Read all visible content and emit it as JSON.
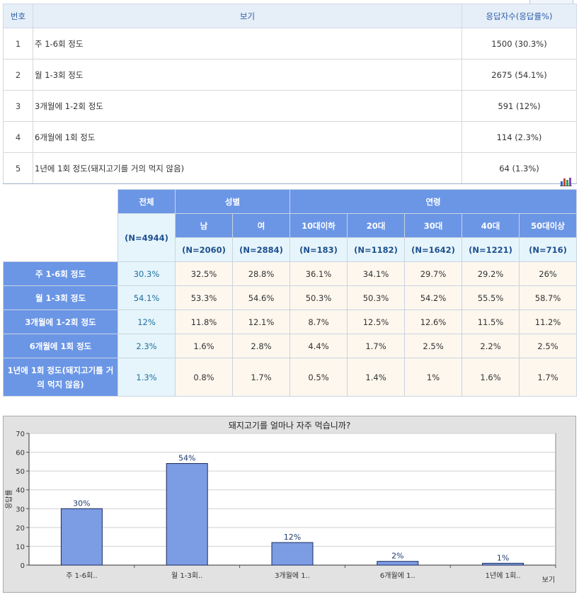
{
  "table1": {
    "headers": [
      "번호",
      "보기",
      "응답자수(응답률%)"
    ],
    "rows": [
      {
        "no": "1",
        "text": "주 1-6회 정도",
        "count": "1500 (30.3%)"
      },
      {
        "no": "2",
        "text": "월 1-3회 정도",
        "count": "2675 (54.1%)"
      },
      {
        "no": "3",
        "text": "3개월에 1-2회 정도",
        "count": "591 (12%)"
      },
      {
        "no": "4",
        "text": "6개월에 1회 정도",
        "count": "114 (2.3%)"
      },
      {
        "no": "5",
        "text": "1년에 1회 정도(돼지고기를 거의 먹지 않음)",
        "count": "64 (1.3%)"
      }
    ]
  },
  "table2": {
    "total_label": "전체",
    "total_n": "(N=4944)",
    "gender_label": "성별",
    "age_label": "연령",
    "groups": [
      "남",
      "여",
      "10대이하",
      "20대",
      "30대",
      "40대",
      "50대이상"
    ],
    "group_n": [
      "(N=2060)",
      "(N=2884)",
      "(N=183)",
      "(N=1182)",
      "(N=1642)",
      "(N=1221)",
      "(N=716)"
    ],
    "rows": [
      {
        "label": "주 1-6회 정도",
        "total": "30.3%",
        "values": [
          "32.5%",
          "28.8%",
          "36.1%",
          "34.1%",
          "29.7%",
          "29.2%",
          "26%"
        ]
      },
      {
        "label": "월 1-3회 정도",
        "total": "54.1%",
        "values": [
          "53.3%",
          "54.6%",
          "50.3%",
          "50.3%",
          "54.2%",
          "55.5%",
          "58.7%"
        ]
      },
      {
        "label": "3개월에 1-2회 정도",
        "total": "12%",
        "values": [
          "11.8%",
          "12.1%",
          "8.7%",
          "12.5%",
          "12.6%",
          "11.5%",
          "11.2%"
        ]
      },
      {
        "label": "6개월에 1회 정도",
        "total": "2.3%",
        "values": [
          "1.6%",
          "2.8%",
          "4.4%",
          "1.7%",
          "2.5%",
          "2.2%",
          "2.5%"
        ]
      },
      {
        "label": "1년에 1회 정도(돼지고기를 거의 먹지 않음)",
        "total": "1.3%",
        "values": [
          "0.8%",
          "1.7%",
          "0.5%",
          "1.4%",
          "1%",
          "1.6%",
          "1.7%"
        ]
      }
    ]
  },
  "icons": {
    "chart_toggle": "bar-chart-icon"
  },
  "colors": {
    "bar": "#7c9de4",
    "header_blue": "#6b96e6",
    "chart_bg": "#e2e2e2"
  },
  "chart_data": {
    "type": "bar",
    "title": "돼지고기를 얼마나 자주 먹습니까?",
    "xlabel": "보기",
    "ylabel": "응답률",
    "categories": [
      "주 1-6회..",
      "월 1-3회..",
      "3개월에 1..",
      "6개월에 1..",
      "1년에 1회.."
    ],
    "values": [
      30,
      54,
      12,
      2,
      1
    ],
    "value_labels": [
      "30%",
      "54%",
      "12%",
      "2%",
      "1%"
    ],
    "ylim": [
      0,
      70
    ],
    "yticks": [
      0,
      10,
      20,
      30,
      40,
      50,
      60,
      70
    ],
    "grid": true
  }
}
